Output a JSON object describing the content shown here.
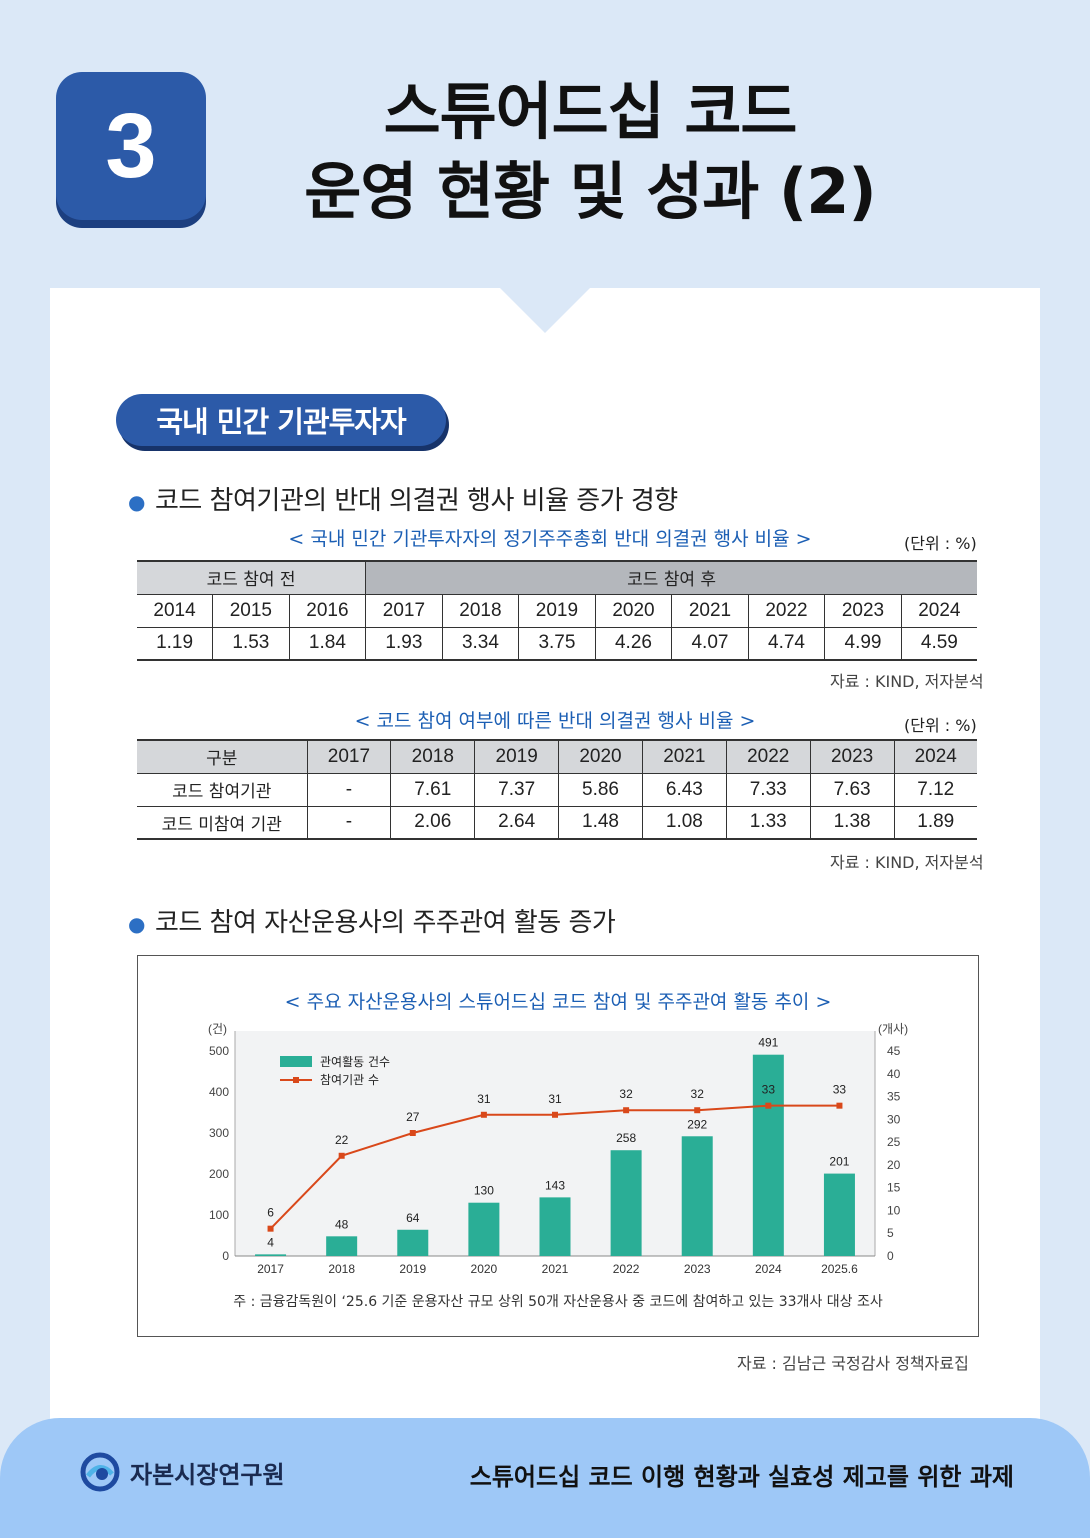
{
  "header": {
    "number": "3",
    "title_line1": "스튜어드십 코드",
    "title_line2": "운영 현황 및 성과 (2)"
  },
  "section": {
    "label": "국내 민간 기관투자자"
  },
  "bullet1": "코드 참여기관의 반대 의결권 행사 비율 증가 경향",
  "table1": {
    "caption": "< 국내 민간 기관투자자의 정기주주총회 반대 의결권 행사 비율 >",
    "unit": "(단위 : %)",
    "group_before": "코드 참여 전",
    "group_after": "코드 참여 후",
    "years": [
      "2014",
      "2015",
      "2016",
      "2017",
      "2018",
      "2019",
      "2020",
      "2021",
      "2022",
      "2023",
      "2024"
    ],
    "values": [
      "1.19",
      "1.53",
      "1.84",
      "1.93",
      "3.34",
      "3.75",
      "4.26",
      "4.07",
      "4.74",
      "4.99",
      "4.59"
    ],
    "source": "자료 : KIND, 저자분석"
  },
  "table2": {
    "caption": "< 코드 참여 여부에 따른 반대 의결권 행사 비율 >",
    "unit": "(단위 : %)",
    "header": [
      "구분",
      "2017",
      "2018",
      "2019",
      "2020",
      "2021",
      "2022",
      "2023",
      "2024"
    ],
    "rows": [
      [
        "코드 참여기관",
        "-",
        "7.61",
        "7.37",
        "5.86",
        "6.43",
        "7.33",
        "7.63",
        "7.12"
      ],
      [
        "코드 미참여 기관",
        "-",
        "2.06",
        "2.64",
        "1.48",
        "1.08",
        "1.33",
        "1.38",
        "1.89"
      ]
    ],
    "source": "자료 : KIND, 저자분석"
  },
  "bullet2": "코드 참여 자산운용사의 주주관여 활동 증가",
  "chart_data": {
    "type": "bar",
    "title": "< 주요 자산운용사의 스튜어드십 코드 참여 및 주주관여 활동 추이 >",
    "categories": [
      "2017",
      "2018",
      "2019",
      "2020",
      "2021",
      "2022",
      "2023",
      "2024",
      "2025.6"
    ],
    "series": [
      {
        "name": "관여활동 건수",
        "type": "bar",
        "axis": "left",
        "color": "#2aae96",
        "values": [
          4,
          48,
          64,
          130,
          143,
          258,
          292,
          491,
          201
        ]
      },
      {
        "name": "참여기관 수",
        "type": "line",
        "axis": "right",
        "color": "#d9481a",
        "values": [
          6,
          22,
          27,
          31,
          31,
          32,
          32,
          33,
          33
        ]
      }
    ],
    "ylabel_left": "(건)",
    "ylabel_right": "(개사)",
    "ylim_left": [
      0,
      500
    ],
    "ylim_right": [
      0,
      45
    ],
    "yticks_left": [
      "0",
      "100",
      "200",
      "300",
      "400",
      "500"
    ],
    "yticks_right": [
      "0",
      "5",
      "10",
      "15",
      "20",
      "25",
      "30",
      "35",
      "40",
      "45"
    ],
    "legend_position": "top-left",
    "note": "주 : 금융감독원이 ‘25.6 기준 운용자산 규모 상위 50개 자산운용사 중 코드에 참여하고 있는 33개사 대상 조사"
  },
  "chart_source": "자료 : 김남근 국정감사 정책자료집",
  "footer": {
    "org": "자본시장연구원",
    "report_title": "스튜어드십 코드 이행 현황과 실효성 제고를 위한 과제"
  }
}
